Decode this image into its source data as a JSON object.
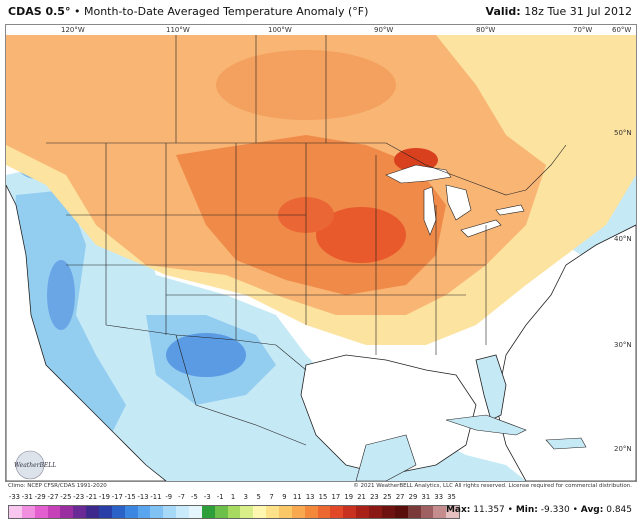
{
  "header": {
    "model": "CDAS 0.5°",
    "separator": "•",
    "title": "Month-to-Date Averaged Temperature Anomaly (°F)",
    "valid_label": "Valid:",
    "valid_value": "18z Tue 31 Jul 2012"
  },
  "map": {
    "longitude_labels": [
      "120°W",
      "110°W",
      "100°W",
      "90°W",
      "80°W",
      "70°W",
      "60°W"
    ],
    "latitude_labels": [
      "50°N",
      "40°N",
      "30°N",
      "20°N"
    ]
  },
  "footer": {
    "climo_credit": "Climo: NCEP CFSR/CDAS 1991-2020",
    "copyright": "© 2021 WeatherBELL Analytics, LLC All rights reserved. License required for commercial distribution.",
    "logo_text": "WeatherBELL",
    "colorbar_ticks": [
      "-33",
      "-31",
      "-29",
      "-27",
      "-25",
      "-23",
      "-21",
      "-19",
      "-17",
      "-15",
      "-13",
      "-11",
      "-9",
      "-7",
      "-5",
      "-3",
      "-1",
      "1",
      "3",
      "5",
      "7",
      "9",
      "11",
      "13",
      "15",
      "17",
      "19",
      "21",
      "23",
      "25",
      "27",
      "29",
      "31",
      "33",
      "35"
    ],
    "stats": {
      "max_label": "Max:",
      "max_value": "11.357",
      "min_label": "Min:",
      "min_value": "-9.330",
      "avg_label": "Avg:",
      "avg_value": "0.845"
    }
  },
  "colors": {
    "ocean": "#ffffff",
    "strong_warm": "#e8552a",
    "moderate_warm": "#f5a060",
    "light_warm": "#fbd08a",
    "neutral": "#fdf3c0",
    "light_cool": "#bfe6f5",
    "moderate_cool": "#8ccbf0",
    "strong_cool": "#4a8fe0"
  }
}
